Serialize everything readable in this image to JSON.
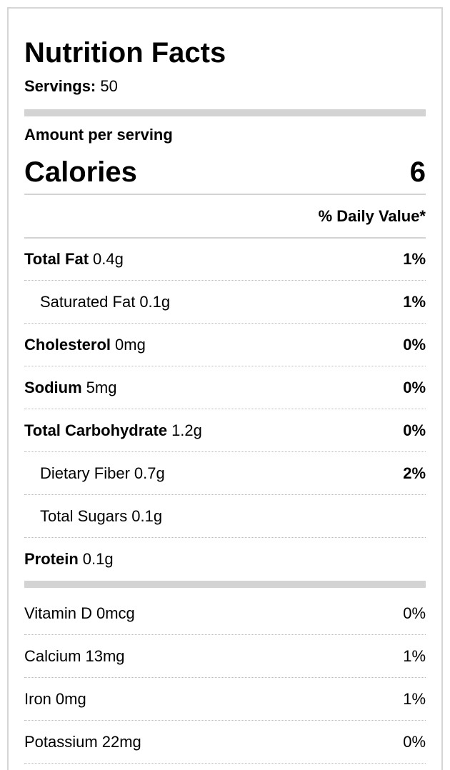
{
  "header": {
    "title": "Nutrition Facts",
    "servings_label": "Servings:",
    "servings": "50"
  },
  "amount_per_serving": "Amount per serving",
  "calories": {
    "label": "Calories",
    "value": "6"
  },
  "daily_value_header": "% Daily Value*",
  "nutrients": [
    {
      "name": "Total Fat",
      "amount": "0.4g",
      "dv": "1%",
      "bold": true,
      "indent": false
    },
    {
      "name": "Saturated Fat",
      "amount": "0.1g",
      "dv": "1%",
      "bold": false,
      "indent": true
    },
    {
      "name": "Cholesterol",
      "amount": "0mg",
      "dv": "0%",
      "bold": true,
      "indent": false
    },
    {
      "name": "Sodium",
      "amount": "5mg",
      "dv": "0%",
      "bold": true,
      "indent": false
    },
    {
      "name": "Total Carbohydrate",
      "amount": "1.2g",
      "dv": "0%",
      "bold": true,
      "indent": false
    },
    {
      "name": "Dietary Fiber",
      "amount": "0.7g",
      "dv": "2%",
      "bold": false,
      "indent": true
    },
    {
      "name": "Total Sugars",
      "amount": "0.1g",
      "dv": null,
      "bold": false,
      "indent": true
    },
    {
      "name": "Protein",
      "amount": "0.1g",
      "dv": null,
      "bold": true,
      "indent": false
    }
  ],
  "vitamins": [
    {
      "name": "Vitamin D",
      "amount": "0mcg",
      "dv": "0%"
    },
    {
      "name": "Calcium",
      "amount": "13mg",
      "dv": "1%"
    },
    {
      "name": "Iron",
      "amount": "0mg",
      "dv": "1%"
    },
    {
      "name": "Potassium",
      "amount": "22mg",
      "dv": "0%"
    }
  ]
}
